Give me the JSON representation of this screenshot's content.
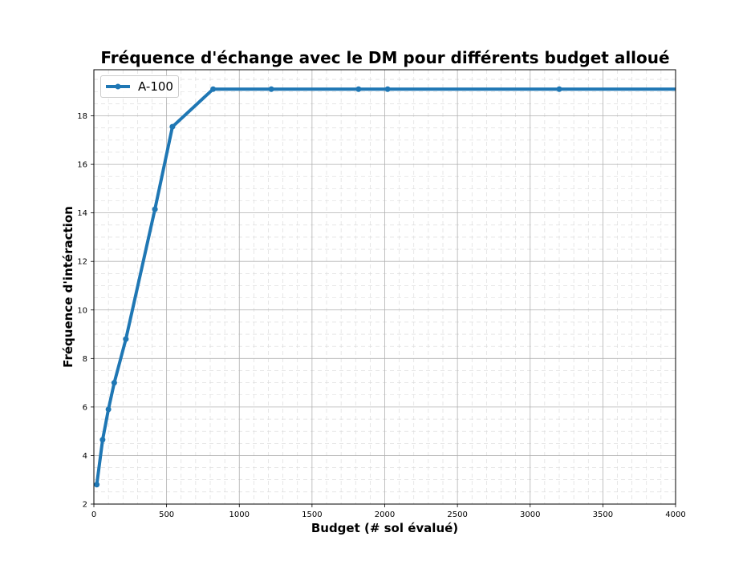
{
  "chart_data": {
    "type": "line",
    "title": "Fréquence d'échange avec le DM pour différents budget alloué",
    "xlabel": "Budget (# sol évalué)",
    "ylabel": "Fréquence d'intéraction",
    "xlim": [
      0,
      4000
    ],
    "ylim": [
      2,
      19.9
    ],
    "x_ticks": [
      0,
      500,
      1000,
      1500,
      2000,
      2500,
      3000,
      3500,
      4000
    ],
    "y_ticks": [
      2,
      4,
      6,
      8,
      10,
      12,
      14,
      16,
      18
    ],
    "grid": true,
    "minor_grid": true,
    "legend_position": "upper-left",
    "series": [
      {
        "name": "A-100",
        "color": "#1f77b4",
        "x": [
          20,
          60,
          100,
          140,
          220,
          420,
          540,
          820,
          1220,
          1820,
          2020,
          3200,
          4000
        ],
        "y": [
          2.8,
          4.65,
          5.9,
          7.0,
          8.8,
          14.15,
          17.55,
          19.1,
          19.1,
          19.1,
          19.1,
          19.1,
          19.1
        ],
        "markers": [
          true,
          true,
          true,
          true,
          true,
          true,
          true,
          true,
          true,
          true,
          true,
          true,
          false
        ]
      }
    ]
  }
}
